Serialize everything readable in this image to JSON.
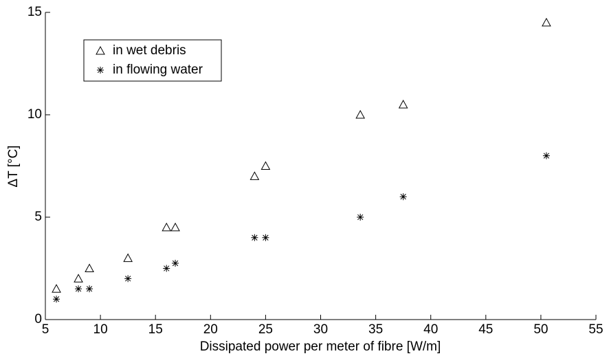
{
  "chart_data": {
    "type": "scatter",
    "xlabel": "Dissipated power per meter of fibre  [W/m]",
    "ylabel": "ΔT  [°C]",
    "xlim": [
      5,
      55
    ],
    "xticks": [
      5,
      10,
      15,
      20,
      25,
      30,
      35,
      40,
      45,
      50,
      55
    ],
    "ylim": [
      0,
      15
    ],
    "yticks": [
      0,
      5,
      10,
      15
    ],
    "grid": false,
    "legend": "upper left",
    "series": [
      {
        "name": "in wet debris",
        "color": "#000000",
        "marker": "triangle",
        "x": [
          6,
          8,
          9,
          12.5,
          16,
          16.8,
          24,
          25,
          33.6,
          37.5,
          50.5
        ],
        "values": [
          1.5,
          2,
          2.5,
          3,
          4.5,
          4.5,
          7,
          7.5,
          10,
          10.5,
          14.5
        ]
      },
      {
        "name": "in flowing water",
        "color": "#000000",
        "marker": "star",
        "x": [
          6,
          8,
          9,
          12.5,
          16,
          16.8,
          24,
          25,
          33.6,
          37.5,
          50.5
        ],
        "values": [
          1,
          1.5,
          1.5,
          2,
          2.5,
          2.75,
          4,
          4,
          5,
          6,
          8
        ]
      }
    ]
  }
}
